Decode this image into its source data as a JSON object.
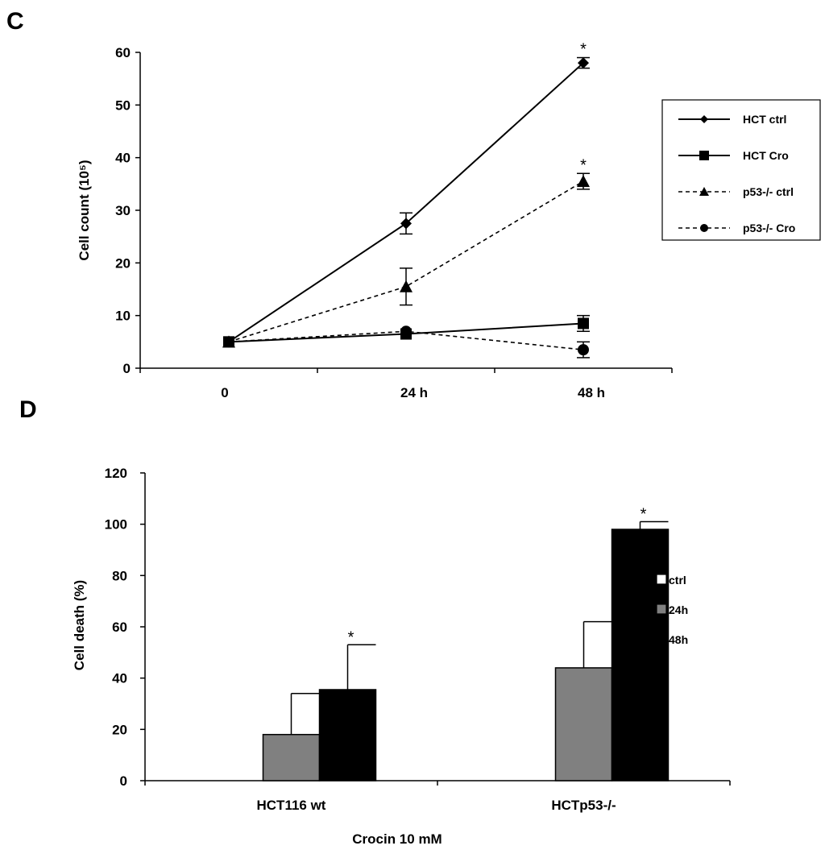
{
  "chart_data": [
    {
      "panel_label": "C",
      "type": "line",
      "categories": [
        "0",
        "24 h",
        "48 h"
      ],
      "ylabel": "Cell count (10⁵)",
      "ylim": [
        0,
        60
      ],
      "yticks": [
        0,
        10,
        20,
        30,
        40,
        50,
        60
      ],
      "grid": false,
      "legend_position": "right",
      "series": [
        {
          "name": "HCT ctrl",
          "values": [
            5,
            27.5,
            58
          ],
          "errors": [
            0.5,
            2,
            1
          ],
          "marker": "diamond",
          "dash": "solid",
          "significant": [
            false,
            false,
            true
          ]
        },
        {
          "name": "HCT Cro",
          "values": [
            5,
            6.5,
            8.5
          ],
          "errors": [
            0.5,
            0.5,
            1.5
          ],
          "marker": "square",
          "dash": "solid",
          "significant": [
            false,
            false,
            false
          ]
        },
        {
          "name": "p53-/- ctrl",
          "values": [
            5,
            15.5,
            35.5
          ],
          "errors": [
            0.5,
            3.5,
            1.5
          ],
          "marker": "triangle",
          "dash": "dashed",
          "significant": [
            false,
            false,
            true
          ]
        },
        {
          "name": "p53-/- Cro",
          "values": [
            5,
            7,
            3.5
          ],
          "errors": [
            0.5,
            0.5,
            1.5
          ],
          "marker": "circle",
          "dash": "dashed",
          "significant": [
            false,
            false,
            false
          ]
        }
      ],
      "annotation": "*"
    },
    {
      "panel_label": "D",
      "type": "bar",
      "categories": [
        "HCT116 wt",
        "HCTp53-/-"
      ],
      "xlabel": "Crocin 10 mM",
      "ylabel": "Cell death (%)",
      "ylim": [
        0,
        120
      ],
      "yticks": [
        0,
        20,
        40,
        60,
        80,
        100,
        120
      ],
      "grid": false,
      "legend_position": "right",
      "series": [
        {
          "name": "ctrl",
          "values": [
            0,
            0
          ],
          "errors": [
            0,
            0
          ],
          "color": "#ffffff",
          "significant": [
            false,
            false
          ]
        },
        {
          "name": "24h",
          "values": [
            18,
            44
          ],
          "errors": [
            16,
            18
          ],
          "color": "#808080",
          "significant": [
            false,
            false
          ]
        },
        {
          "name": "48h",
          "values": [
            35.5,
            98
          ],
          "errors": [
            17.5,
            3
          ],
          "color": "#000000",
          "significant": [
            true,
            true
          ]
        }
      ],
      "annotation": "*"
    }
  ]
}
